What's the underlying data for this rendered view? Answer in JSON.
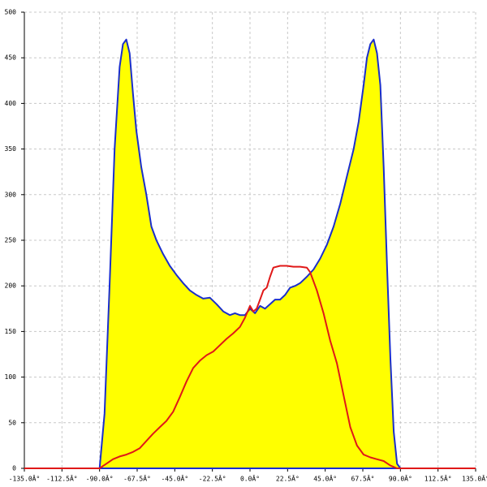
{
  "chart_data": {
    "type": "area",
    "xlim": [
      -135,
      135
    ],
    "ylim": [
      0,
      500
    ],
    "xticks": [
      {
        "value": -135,
        "label": "-135.0Â°"
      },
      {
        "value": -112.5,
        "label": "-112.5Â°"
      },
      {
        "value": -90,
        "label": "-90.0Â°"
      },
      {
        "value": -67.5,
        "label": "-67.5Â°"
      },
      {
        "value": -45,
        "label": "-45.0Â°"
      },
      {
        "value": -22.5,
        "label": "-22.5Â°"
      },
      {
        "value": 0,
        "label": "0.0Â°"
      },
      {
        "value": 22.5,
        "label": "22.5Â°"
      },
      {
        "value": 45,
        "label": "45.0Â°"
      },
      {
        "value": 67.5,
        "label": "67.5Â°"
      },
      {
        "value": 90,
        "label": "90.0Â°"
      },
      {
        "value": 112.5,
        "label": "112.5Â°"
      },
      {
        "value": 135,
        "label": "135.0Â°"
      }
    ],
    "yticks": [
      0,
      50,
      100,
      150,
      200,
      250,
      300,
      350,
      400,
      450,
      500
    ],
    "grid": true,
    "series": [
      {
        "color": "#1a2ecc",
        "fill": "#ffff00",
        "x": [
          -90,
          -87,
          -84,
          -81,
          -78,
          -76,
          -74,
          -72,
          -70,
          -68,
          -65,
          -62,
          -59,
          -56,
          -52,
          -48,
          -44,
          -40,
          -36,
          -32,
          -28,
          -24,
          -20,
          -16,
          -12,
          -9,
          -6,
          -3,
          0,
          3,
          6,
          9,
          12,
          15,
          18,
          21,
          24,
          27,
          30,
          34,
          38,
          42,
          46,
          50,
          54,
          58,
          62,
          65,
          68,
          70,
          72,
          74,
          76,
          78,
          80,
          82,
          84,
          86,
          88,
          90
        ],
        "values": [
          0,
          60,
          200,
          350,
          440,
          465,
          470,
          455,
          410,
          370,
          330,
          300,
          265,
          250,
          235,
          222,
          212,
          203,
          195,
          190,
          186,
          187,
          180,
          172,
          168,
          170,
          168,
          168,
          175,
          170,
          178,
          175,
          180,
          185,
          185,
          190,
          198,
          200,
          203,
          210,
          218,
          230,
          245,
          265,
          290,
          320,
          350,
          380,
          420,
          450,
          465,
          470,
          455,
          420,
          330,
          220,
          120,
          40,
          5,
          0
        ]
      },
      {
        "color": "#e01818",
        "x": [
          -135,
          -90,
          -86,
          -82,
          -78,
          -74,
          -70,
          -66,
          -62,
          -58,
          -54,
          -50,
          -46,
          -42,
          -38,
          -34,
          -30,
          -26,
          -22,
          -18,
          -14,
          -10,
          -6,
          -3,
          0,
          2,
          4,
          6,
          8,
          10,
          12,
          14,
          18,
          22,
          26,
          30,
          34,
          36,
          40,
          44,
          48,
          52,
          56,
          60,
          64,
          68,
          72,
          76,
          80,
          84,
          88,
          90,
          135
        ],
        "values": [
          0,
          0,
          5,
          10,
          13,
          15,
          18,
          22,
          30,
          38,
          45,
          52,
          62,
          78,
          95,
          110,
          118,
          124,
          128,
          135,
          142,
          148,
          155,
          165,
          178,
          172,
          175,
          185,
          195,
          198,
          210,
          220,
          222,
          222,
          221,
          221,
          220,
          215,
          195,
          170,
          140,
          115,
          80,
          45,
          25,
          15,
          12,
          10,
          8,
          3,
          0,
          0,
          0
        ]
      }
    ]
  }
}
